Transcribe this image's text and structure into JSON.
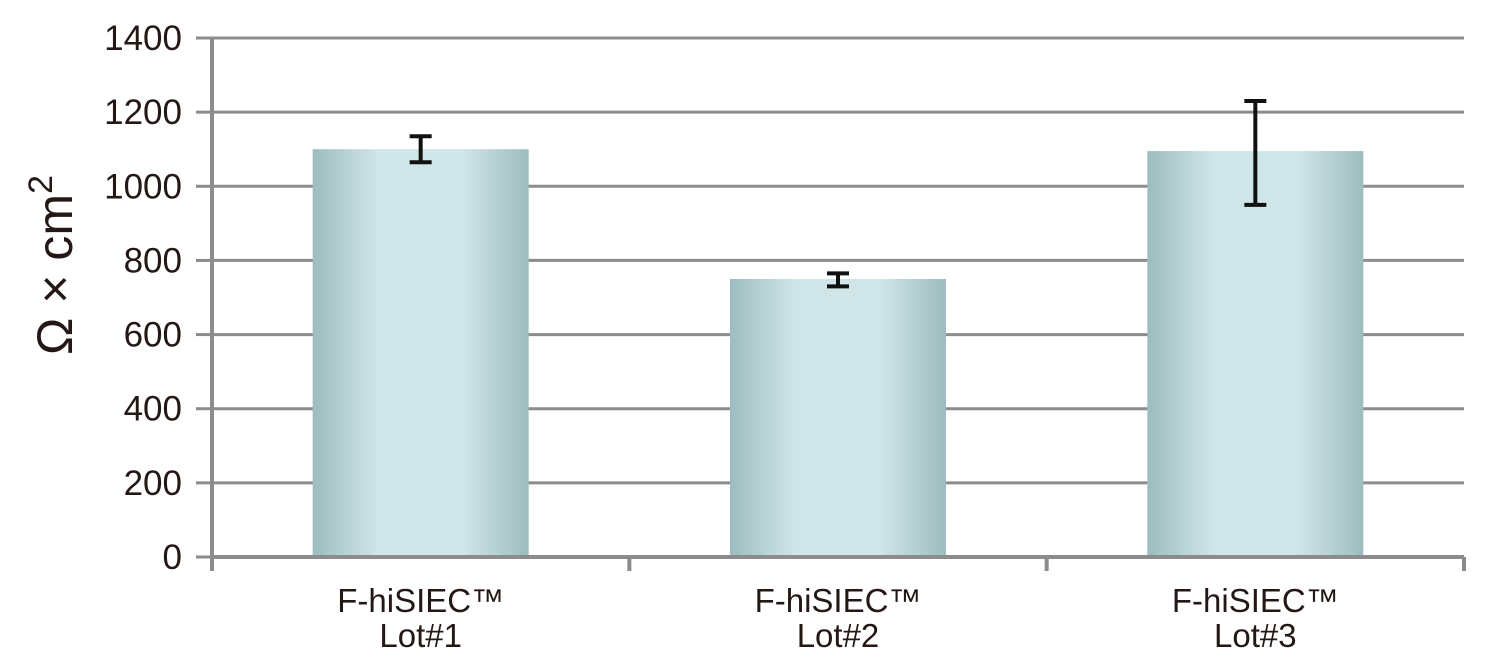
{
  "chart_data": {
    "type": "bar",
    "categories": [
      {
        "line1": "F-hiSIEC™",
        "line2": "Lot#1"
      },
      {
        "line1": "F-hiSIEC™",
        "line2": "Lot#2"
      },
      {
        "line1": "F-hiSIEC™",
        "line2": "Lot#3"
      }
    ],
    "values": [
      1100,
      750,
      1095
    ],
    "error_low": [
      1065,
      730,
      950
    ],
    "error_high": [
      1135,
      765,
      1230
    ],
    "ylabel": "Ω × cm",
    "ylabel_superscript": "2",
    "xlabel": "",
    "ylim": [
      0,
      1400
    ],
    "yticks": [
      0,
      200,
      400,
      600,
      800,
      1000,
      1200,
      1400
    ],
    "grid": true,
    "legend": "none"
  },
  "colors": {
    "axis": "#8c8c8c",
    "grid": "#8c8c8c",
    "bar_edge": "#9dbcbf",
    "bar_mid": "#cfe5e8",
    "error_bar": "#111111",
    "text": "#231815"
  }
}
